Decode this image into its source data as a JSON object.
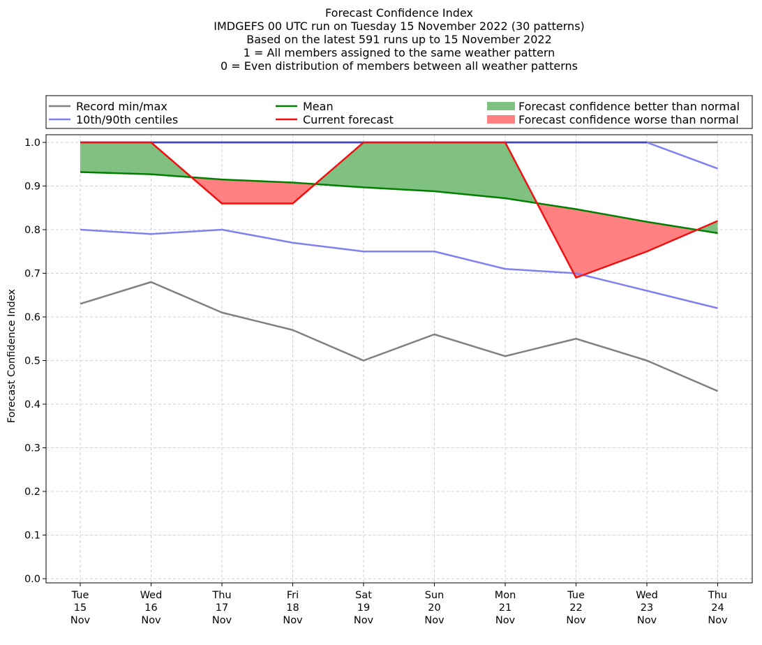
{
  "chart_data": {
    "type": "line",
    "title_lines": [
      "Forecast Confidence Index",
      "IMDGEFS 00 UTC run on Tuesday 15 November 2022 (30 patterns)",
      "Based on the latest 591 runs up to 15 November 2022",
      "1 = All members assigned to the same weather pattern",
      "0 = Even distribution of members between all weather patterns"
    ],
    "ylabel": "Forecast Confidence Index",
    "ylim": [
      0.0,
      1.0
    ],
    "yticks": [
      "0.0",
      "0.1",
      "0.2",
      "0.3",
      "0.4",
      "0.5",
      "0.6",
      "0.7",
      "0.8",
      "0.9",
      "1.0"
    ],
    "categories": [
      {
        "day": "Tue",
        "date": "15",
        "month": "Nov"
      },
      {
        "day": "Wed",
        "date": "16",
        "month": "Nov"
      },
      {
        "day": "Thu",
        "date": "17",
        "month": "Nov"
      },
      {
        "day": "Fri",
        "date": "18",
        "month": "Nov"
      },
      {
        "day": "Sat",
        "date": "19",
        "month": "Nov"
      },
      {
        "day": "Sun",
        "date": "20",
        "month": "Nov"
      },
      {
        "day": "Mon",
        "date": "21",
        "month": "Nov"
      },
      {
        "day": "Tue",
        "date": "22",
        "month": "Nov"
      },
      {
        "day": "Wed",
        "date": "23",
        "month": "Nov"
      },
      {
        "day": "Thu",
        "date": "24",
        "month": "Nov"
      }
    ],
    "series": {
      "record_min": [
        0.63,
        0.68,
        0.61,
        0.57,
        0.5,
        0.56,
        0.51,
        0.55,
        0.5,
        0.43
      ],
      "record_max": [
        1.0,
        1.0,
        1.0,
        1.0,
        1.0,
        1.0,
        1.0,
        1.0,
        1.0,
        1.0
      ],
      "centile_10": [
        0.8,
        0.79,
        0.8,
        0.77,
        0.75,
        0.75,
        0.71,
        0.7,
        0.66,
        0.62
      ],
      "centile_90": [
        1.0,
        1.0,
        1.0,
        1.0,
        1.0,
        1.0,
        1.0,
        1.0,
        1.0,
        0.94
      ],
      "mean": [
        0.932,
        0.927,
        0.915,
        0.908,
        0.897,
        0.888,
        0.872,
        0.847,
        0.818,
        0.792
      ],
      "current": [
        1.0,
        1.0,
        0.86,
        0.86,
        1.0,
        1.0,
        1.0,
        0.69,
        0.75,
        0.82
      ]
    },
    "legend": {
      "record": "Record min/max",
      "centiles": "10th/90th centiles",
      "mean": "Mean",
      "current": "Current forecast",
      "better": "Forecast confidence better than normal",
      "worse": "Forecast confidence worse than normal"
    },
    "colors": {
      "record": "#808080",
      "centiles": "#8080f0",
      "centiles_overlap": "#4444b8",
      "mean": "#008000",
      "current": "#ee1111",
      "better": "#80c080",
      "worse": "#ff8080",
      "grid": "#d0d0d0"
    },
    "grid": true
  }
}
